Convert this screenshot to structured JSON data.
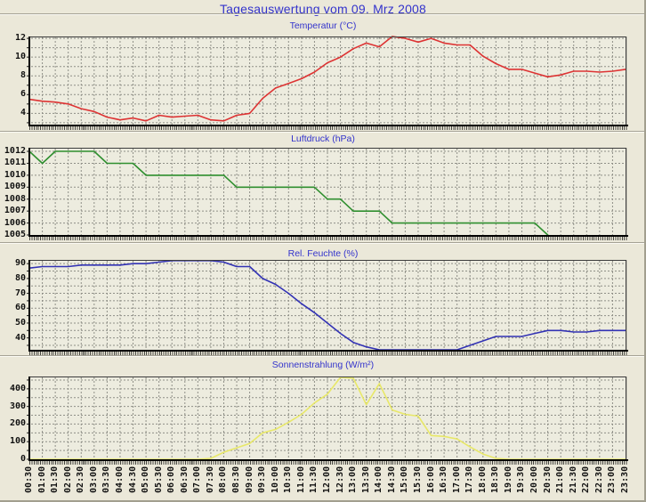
{
  "page": {
    "title": "Tagesauswertung vom 09. Mrz 2008",
    "title_color": "#3333cc"
  },
  "x_axis": {
    "labels": [
      "00:30",
      "01:00",
      "01:30",
      "02:00",
      "02:30",
      "03:00",
      "03:30",
      "04:00",
      "04:30",
      "05:00",
      "05:30",
      "06:00",
      "06:30",
      "07:00",
      "07:30",
      "08:00",
      "08:30",
      "09:00",
      "09:30",
      "10:00",
      "10:30",
      "11:00",
      "11:30",
      "12:00",
      "12:30",
      "13:00",
      "13:30",
      "14:00",
      "14:30",
      "15:00",
      "15:30",
      "16:00",
      "16:30",
      "17:00",
      "17:30",
      "18:00",
      "18:30",
      "19:00",
      "19:30",
      "20:00",
      "20:30",
      "21:00",
      "21:30",
      "22:00",
      "22:30",
      "23:00",
      "23:30"
    ]
  },
  "chart_data": [
    {
      "id": "temperature",
      "type": "line",
      "title": "Temperatur (°C)",
      "color": "#dd3333",
      "ylim": [
        2.8,
        12.2
      ],
      "yticks": [
        4,
        6,
        8,
        10,
        12
      ],
      "grid_step": 1,
      "grid": true,
      "legend": "none",
      "values": [
        5.5,
        5.3,
        5.2,
        5.0,
        4.5,
        4.2,
        3.6,
        3.3,
        3.5,
        3.2,
        3.8,
        3.6,
        3.7,
        3.8,
        3.3,
        3.2,
        3.8,
        4.0,
        5.6,
        6.7,
        7.2,
        7.7,
        8.4,
        9.4,
        10.0,
        10.9,
        11.5,
        11.1,
        12.2,
        12.0,
        11.6,
        12.0,
        11.5,
        11.3,
        11.3,
        10.1,
        9.3,
        8.7,
        8.7,
        8.3,
        7.9,
        8.1,
        8.5,
        8.5,
        8.4,
        8.5,
        8.7
      ]
    },
    {
      "id": "air-pressure",
      "type": "line",
      "title": "Luftdruck (hPa)",
      "color": "#2f8f2f",
      "ylim": [
        1005,
        1012.3
      ],
      "yticks": [
        1005,
        1006,
        1007,
        1008,
        1009,
        1010,
        1011,
        1012
      ],
      "grid_step": 1,
      "grid": true,
      "legend": "none",
      "values": [
        1012,
        1011,
        1012,
        1012,
        1012,
        1012,
        1011,
        1011,
        1011,
        1010,
        1010,
        1010,
        1010,
        1010,
        1010,
        1010,
        1009,
        1009,
        1009,
        1009,
        1009,
        1009,
        1009,
        1008,
        1008,
        1007,
        1007,
        1007,
        1006,
        1006,
        1006,
        1006,
        1006,
        1006,
        1006,
        1006,
        1006,
        1006,
        1006,
        1006,
        1005,
        null,
        null,
        null,
        null,
        null,
        null
      ]
    },
    {
      "id": "humidity",
      "type": "line",
      "title": "Rel. Feuchte (%)",
      "color": "#3232b4",
      "ylim": [
        32,
        92.5
      ],
      "yticks": [
        40,
        50,
        60,
        70,
        80,
        90
      ],
      "grid_step": 5,
      "grid": true,
      "legend": "none",
      "values": [
        87,
        88,
        88,
        88,
        89,
        89,
        89,
        89,
        90,
        90,
        91,
        92,
        92,
        92,
        92,
        91,
        88,
        88,
        80,
        76,
        70,
        63,
        57,
        50,
        43,
        37,
        34,
        32,
        31,
        31,
        31,
        31,
        32,
        32,
        35,
        38,
        41,
        41,
        41,
        43,
        45,
        45,
        44,
        44,
        45,
        45,
        45
      ]
    },
    {
      "id": "solar-radiation",
      "type": "line",
      "title": "Sonnenstrahlung (W/m²)",
      "color": "#e8e868",
      "ylim": [
        0,
        470
      ],
      "yticks": [
        0,
        100,
        200,
        300,
        400
      ],
      "grid_step": 50,
      "grid": true,
      "legend": "none",
      "values": [
        0,
        0,
        0,
        0,
        0,
        0,
        0,
        0,
        0,
        0,
        0,
        0,
        0,
        0,
        5,
        40,
        65,
        90,
        150,
        170,
        210,
        255,
        320,
        370,
        465,
        460,
        310,
        430,
        280,
        255,
        245,
        135,
        130,
        115,
        70,
        30,
        5,
        0,
        0,
        0,
        0,
        0,
        0,
        0,
        0,
        0,
        0
      ]
    }
  ]
}
